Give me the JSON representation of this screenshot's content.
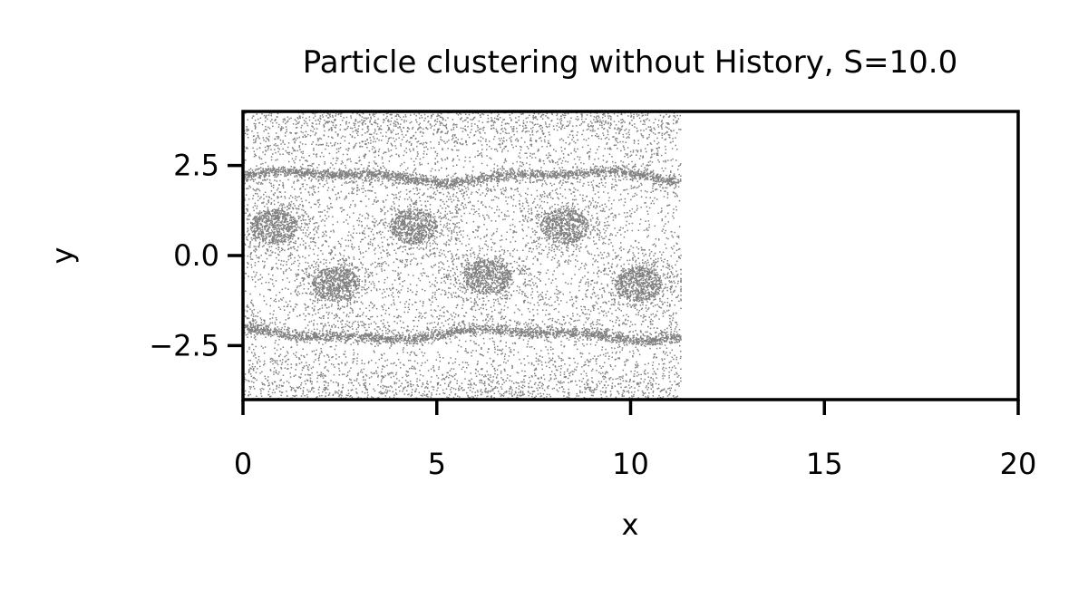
{
  "chart_data": {
    "type": "scatter",
    "title": "Particle clustering without History, S=10.0",
    "xlabel": "x",
    "ylabel": "y",
    "xlim": [
      0,
      20
    ],
    "ylim": [
      -4,
      4
    ],
    "x_ticks": [
      0,
      5,
      10,
      15,
      20
    ],
    "y_ticks": [
      2.5,
      0.0,
      -2.5
    ],
    "x_tick_labels": [
      "0",
      "5",
      "10",
      "15",
      "20"
    ],
    "y_tick_labels": [
      "2.5",
      "0.0",
      "−2.5"
    ],
    "grid": false,
    "legend": "none",
    "point_color": "#808080",
    "series": [
      {
        "point_count": "dense (~12000 particles)",
        "x_range": [
          0,
          11.3
        ],
        "y_range": [
          -4,
          4
        ],
        "upper_band": {
          "y": 2.2,
          "x_range": [
            0,
            11.3
          ]
        },
        "lower_band": {
          "y": -2.2,
          "x_range": [
            0,
            11.3
          ]
        },
        "vortex_clusters": [
          {
            "x": 0.8,
            "y": 0.8
          },
          {
            "x": 4.4,
            "y": 0.8
          },
          {
            "x": 8.3,
            "y": 0.8
          },
          {
            "x": 2.4,
            "y": -0.8
          },
          {
            "x": 6.3,
            "y": -0.6
          },
          {
            "x": 10.2,
            "y": -0.8
          }
        ]
      }
    ]
  }
}
